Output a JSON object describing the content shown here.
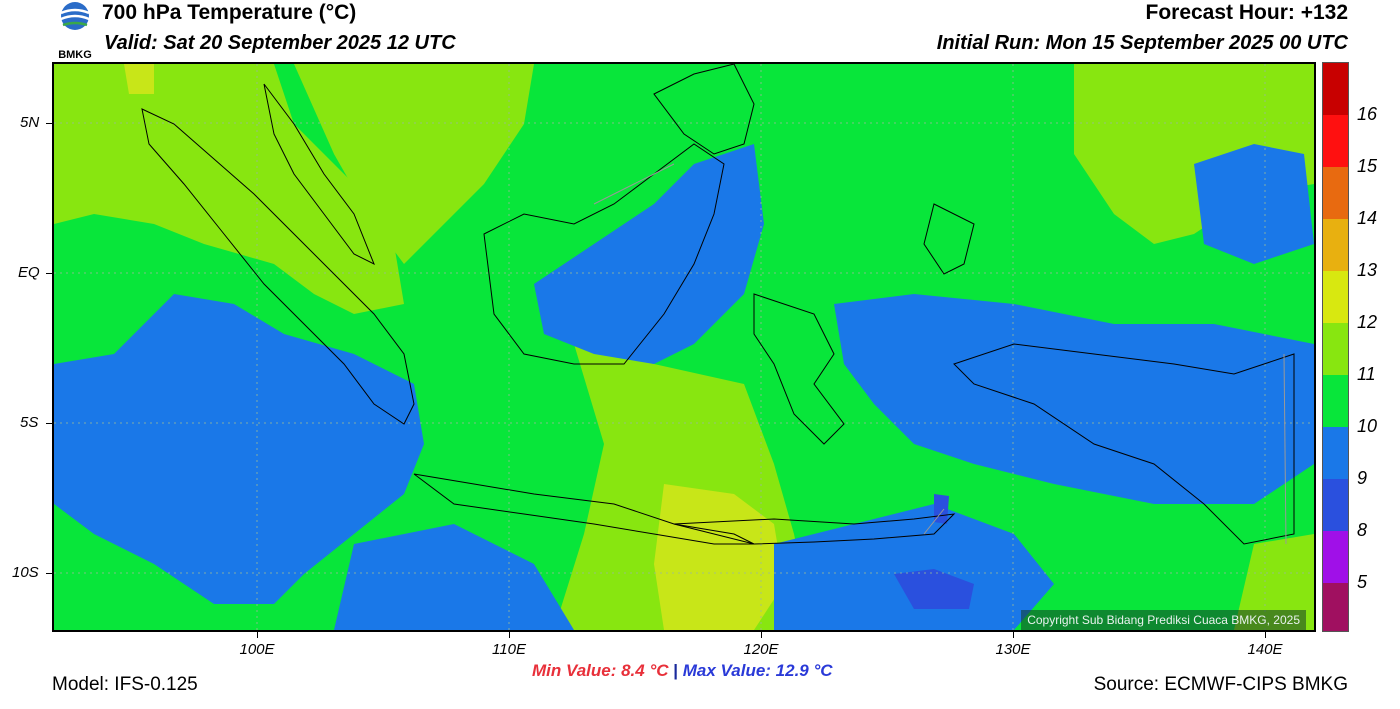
{
  "header": {
    "title": "700 hPa Temperature (°C)",
    "valid": "Valid: Sat 20 September 2025 12 UTC",
    "forecast_hour": "Forecast Hour: +132",
    "initial_run": "Initial Run: Mon 15 September 2025 00 UTC",
    "logo_text": "BMKG"
  },
  "map": {
    "lat_labels": [
      "5N",
      "EQ",
      "5S",
      "10S"
    ],
    "lon_labels": [
      "100E",
      "110E",
      "120E",
      "130E",
      "140E"
    ],
    "copyright": "Copyright Sub Bidang Prediksi Cuaca BMKG, 2025",
    "colors": {
      "c11": "#08e63a",
      "c12": "#88e610",
      "c13": "#c8e618",
      "c10": "#1a78e8",
      "c9": "#2a50de"
    }
  },
  "colorbar": {
    "labels": [
      "16",
      "15",
      "14",
      "13",
      "12",
      "11",
      "10",
      "9",
      "8",
      "5"
    ],
    "colors": [
      "#c80000",
      "#ff1010",
      "#e86a10",
      "#e8b010",
      "#d8e810",
      "#88e610",
      "#08e63a",
      "#1a78e8",
      "#2a50de",
      "#a010e8",
      "#a01060"
    ]
  },
  "footer": {
    "model": "Model: IFS-0.125",
    "source": "Source: ECMWF-CIPS BMKG",
    "min_value": "Min Value: 8.4 °C",
    "separator": "|",
    "max_value": "Max Value: 12.9 °C"
  }
}
